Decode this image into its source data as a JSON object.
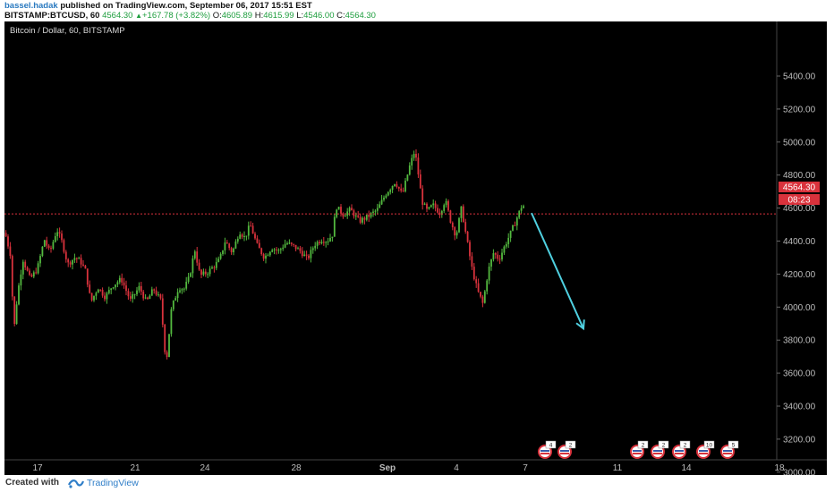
{
  "header": {
    "author": "bassel.hadak",
    "published": "published on TradingView.com, September 06, 2017 15:51 EST",
    "symbol": "BITSTAMP:BTCUSD, 60",
    "last": "4564.30",
    "change": "+167.78 (+3.82%)",
    "o_label": "O:",
    "o_value": "4605.89",
    "h_label": "H:",
    "h_value": "4615.99",
    "l_label": "L:",
    "l_value": "4546.00",
    "c_label": "C:",
    "c_value": "4564.30"
  },
  "legend": "Bitcoin / Dollar, 60, BITSTAMP",
  "price_label": "4564.30",
  "countdown": "08:23",
  "footer": {
    "created": "Created with",
    "brand": "TradingView"
  },
  "colors": {
    "background": "#000000",
    "up": "#53b93f",
    "down": "#d9323c",
    "arrow": "#4fd0e0",
    "price_line": "#d9323c"
  },
  "event_icons": [
    {
      "x_axis": "6",
      "count": "4"
    },
    {
      "x_axis": "6",
      "count": "2"
    },
    {
      "x_axis": "12",
      "count": "2"
    },
    {
      "x_axis": "13",
      "count": "2"
    },
    {
      "x_axis": "13",
      "count": "2"
    },
    {
      "x_axis": "14",
      "count": "10"
    },
    {
      "x_axis": "15",
      "count": "5"
    }
  ],
  "chart_data": {
    "type": "candlestick",
    "title": "Bitcoin / Dollar, 60, BITSTAMP",
    "ylim": [
      2870,
      5560
    ],
    "y_ticks": [
      "5400.00",
      "5200.00",
      "5000.00",
      "4800.00",
      "4600.00",
      "4400.00",
      "4200.00",
      "4000.00",
      "3800.00",
      "3600.00",
      "3400.00",
      "3200.00",
      "3000.00"
    ],
    "x_ticks": [
      "17",
      "21",
      "24",
      "28",
      "Sep",
      "4",
      "7",
      "11",
      "14",
      "18"
    ],
    "current_price": 4564.3,
    "annotation": {
      "type": "arrow",
      "from_price": 4570,
      "to_price": 3870,
      "direction": "down"
    },
    "path": [
      [
        0,
        4450
      ],
      [
        6,
        4320
      ],
      [
        10,
        3860
      ],
      [
        14,
        4080
      ],
      [
        20,
        4290
      ],
      [
        28,
        4170
      ],
      [
        36,
        4230
      ],
      [
        44,
        4410
      ],
      [
        50,
        4330
      ],
      [
        58,
        4470
      ],
      [
        64,
        4390
      ],
      [
        70,
        4260
      ],
      [
        78,
        4300
      ],
      [
        84,
        4280
      ],
      [
        90,
        4220
      ],
      [
        96,
        4030
      ],
      [
        104,
        4120
      ],
      [
        112,
        4060
      ],
      [
        120,
        4130
      ],
      [
        130,
        4170
      ],
      [
        140,
        4040
      ],
      [
        150,
        4120
      ],
      [
        158,
        4030
      ],
      [
        166,
        4110
      ],
      [
        174,
        4040
      ],
      [
        180,
        3650
      ],
      [
        186,
        3990
      ],
      [
        194,
        4120
      ],
      [
        200,
        4110
      ],
      [
        206,
        4180
      ],
      [
        212,
        4350
      ],
      [
        218,
        4190
      ],
      [
        226,
        4210
      ],
      [
        234,
        4250
      ],
      [
        240,
        4290
      ],
      [
        246,
        4400
      ],
      [
        254,
        4330
      ],
      [
        262,
        4460
      ],
      [
        268,
        4420
      ],
      [
        274,
        4500
      ],
      [
        282,
        4370
      ],
      [
        290,
        4300
      ],
      [
        298,
        4360
      ],
      [
        306,
        4340
      ],
      [
        314,
        4390
      ],
      [
        322,
        4370
      ],
      [
        330,
        4340
      ],
      [
        338,
        4290
      ],
      [
        346,
        4380
      ],
      [
        354,
        4410
      ],
      [
        360,
        4400
      ],
      [
        366,
        4440
      ],
      [
        370,
        4610
      ],
      [
        378,
        4560
      ],
      [
        386,
        4590
      ],
      [
        396,
        4520
      ],
      [
        406,
        4550
      ],
      [
        416,
        4590
      ],
      [
        426,
        4690
      ],
      [
        436,
        4760
      ],
      [
        444,
        4680
      ],
      [
        452,
        4850
      ],
      [
        458,
        4950
      ],
      [
        462,
        4800
      ],
      [
        466,
        4640
      ],
      [
        472,
        4580
      ],
      [
        478,
        4620
      ],
      [
        486,
        4570
      ],
      [
        492,
        4650
      ],
      [
        498,
        4520
      ],
      [
        504,
        4430
      ],
      [
        510,
        4600
      ],
      [
        516,
        4410
      ],
      [
        522,
        4230
      ],
      [
        528,
        4100
      ],
      [
        534,
        4020
      ],
      [
        540,
        4220
      ],
      [
        546,
        4330
      ],
      [
        552,
        4290
      ],
      [
        560,
        4390
      ],
      [
        566,
        4460
      ],
      [
        572,
        4540
      ],
      [
        578,
        4620
      ],
      [
        582,
        4600
      ]
    ]
  }
}
